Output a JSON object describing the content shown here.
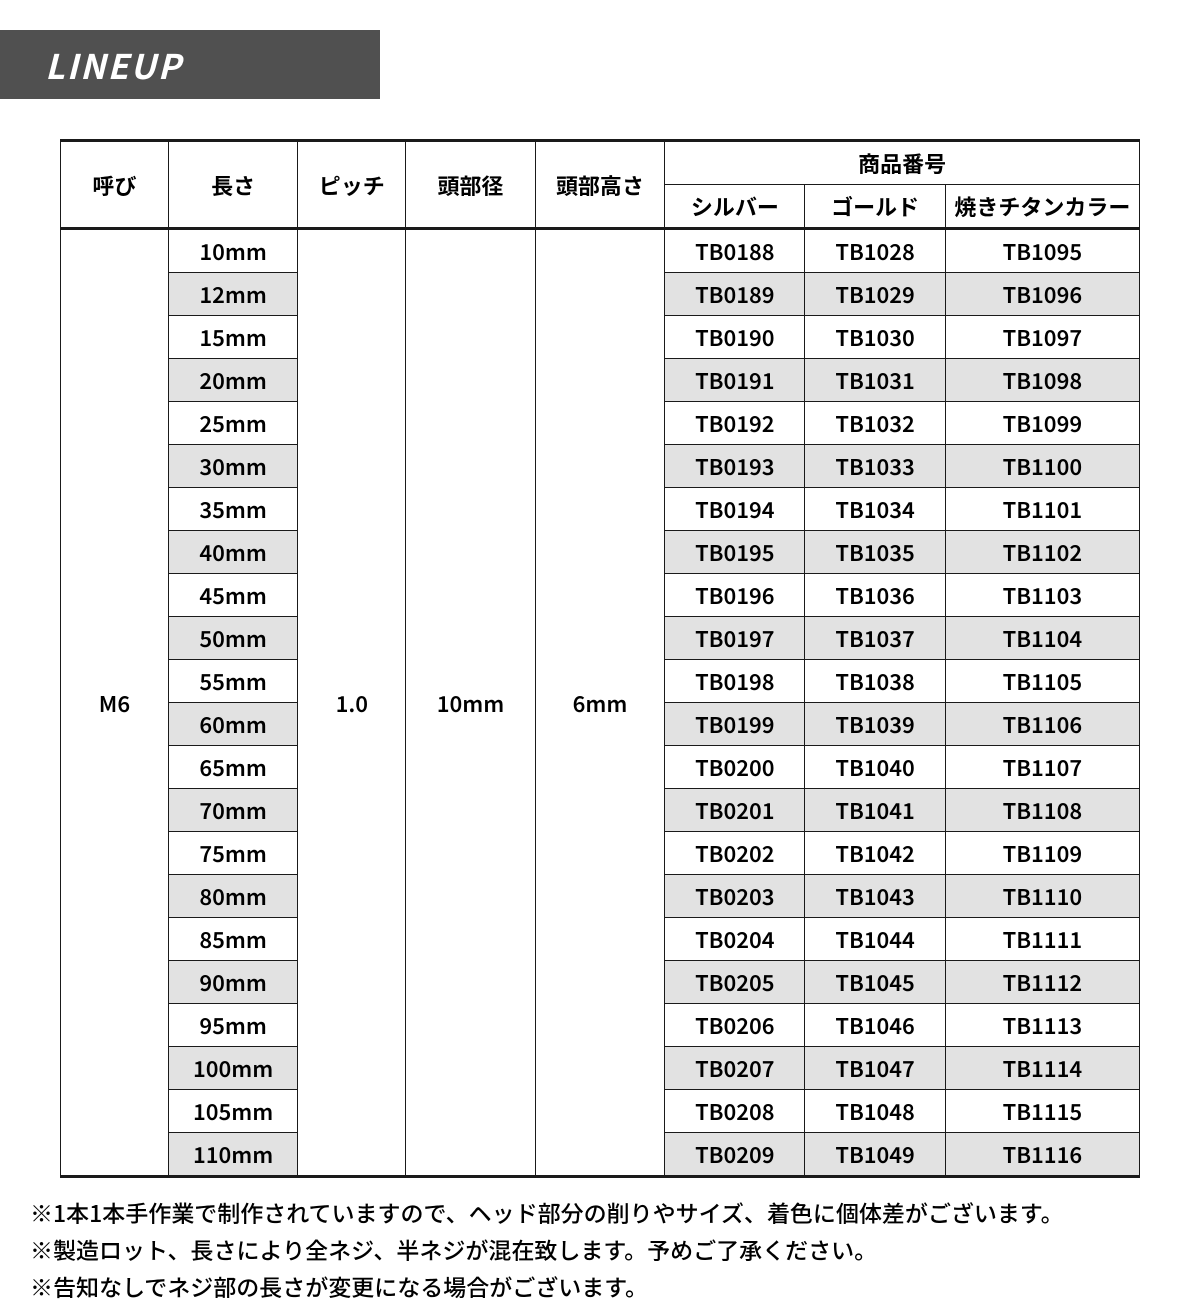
{
  "header": {
    "title": "LINEUP"
  },
  "table": {
    "columns": {
      "name": "呼び",
      "length": "長さ",
      "pitch": "ピッチ",
      "head_dia": "頭部径",
      "head_h": "頭部高さ",
      "product_no": "商品番号",
      "silver": "シルバー",
      "gold": "ゴールド",
      "burnt": "焼きチタンカラー"
    },
    "shared": {
      "name": "M6",
      "pitch": "1.0",
      "head_dia": "10mm",
      "head_h": "6mm"
    },
    "rows": [
      {
        "length": "10mm",
        "silver": "TB0188",
        "gold": "TB1028",
        "burnt": "TB1095"
      },
      {
        "length": "12mm",
        "silver": "TB0189",
        "gold": "TB1029",
        "burnt": "TB1096"
      },
      {
        "length": "15mm",
        "silver": "TB0190",
        "gold": "TB1030",
        "burnt": "TB1097"
      },
      {
        "length": "20mm",
        "silver": "TB0191",
        "gold": "TB1031",
        "burnt": "TB1098"
      },
      {
        "length": "25mm",
        "silver": "TB0192",
        "gold": "TB1032",
        "burnt": "TB1099"
      },
      {
        "length": "30mm",
        "silver": "TB0193",
        "gold": "TB1033",
        "burnt": "TB1100"
      },
      {
        "length": "35mm",
        "silver": "TB0194",
        "gold": "TB1034",
        "burnt": "TB1101"
      },
      {
        "length": "40mm",
        "silver": "TB0195",
        "gold": "TB1035",
        "burnt": "TB1102"
      },
      {
        "length": "45mm",
        "silver": "TB0196",
        "gold": "TB1036",
        "burnt": "TB1103"
      },
      {
        "length": "50mm",
        "silver": "TB0197",
        "gold": "TB1037",
        "burnt": "TB1104"
      },
      {
        "length": "55mm",
        "silver": "TB0198",
        "gold": "TB1038",
        "burnt": "TB1105"
      },
      {
        "length": "60mm",
        "silver": "TB0199",
        "gold": "TB1039",
        "burnt": "TB1106"
      },
      {
        "length": "65mm",
        "silver": "TB0200",
        "gold": "TB1040",
        "burnt": "TB1107"
      },
      {
        "length": "70mm",
        "silver": "TB0201",
        "gold": "TB1041",
        "burnt": "TB1108"
      },
      {
        "length": "75mm",
        "silver": "TB0202",
        "gold": "TB1042",
        "burnt": "TB1109"
      },
      {
        "length": "80mm",
        "silver": "TB0203",
        "gold": "TB1043",
        "burnt": "TB1110"
      },
      {
        "length": "85mm",
        "silver": "TB0204",
        "gold": "TB1044",
        "burnt": "TB1111"
      },
      {
        "length": "90mm",
        "silver": "TB0205",
        "gold": "TB1045",
        "burnt": "TB1112"
      },
      {
        "length": "95mm",
        "silver": "TB0206",
        "gold": "TB1046",
        "burnt": "TB1113"
      },
      {
        "length": "100mm",
        "silver": "TB0207",
        "gold": "TB1047",
        "burnt": "TB1114"
      },
      {
        "length": "105mm",
        "silver": "TB0208",
        "gold": "TB1048",
        "burnt": "TB1115"
      },
      {
        "length": "110mm",
        "silver": "TB0209",
        "gold": "TB1049",
        "burnt": "TB1116"
      }
    ]
  },
  "notes": [
    "※1本1本手作業で制作されていますので、ヘッド部分の削りやサイズ、着色に個体差がございます。",
    "※製造ロット、長さにより全ネジ、半ネジが混在致します。予めご了承ください。",
    "※告知なしでネジ部の長さが変更になる場合がございます。"
  ],
  "style": {
    "header_bg": "#505050",
    "header_fg": "#ffffff",
    "border_color": "#1a1a1a",
    "alt_row_bg": "#e2e2e2",
    "background": "#ffffff",
    "font_sizes": {
      "header": 34,
      "cell": 22,
      "notes": 23
    }
  }
}
